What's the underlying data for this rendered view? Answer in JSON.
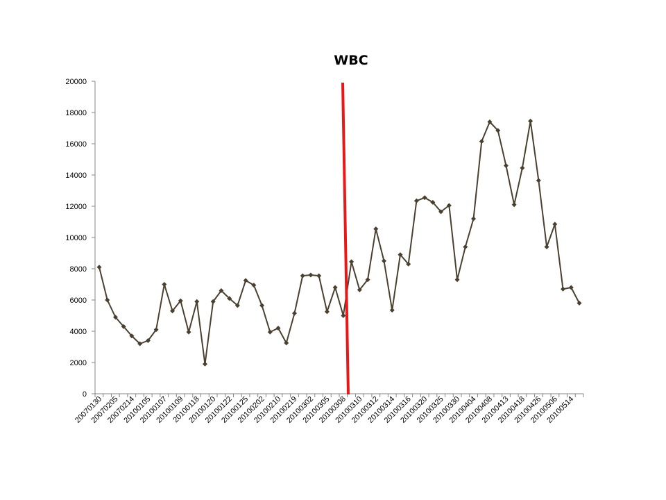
{
  "chart_data": {
    "type": "line",
    "title": "WBC",
    "xlabel": "",
    "ylabel": "",
    "ylim": [
      0,
      20000
    ],
    "yticks": [
      0,
      2000,
      4000,
      6000,
      8000,
      10000,
      12000,
      14000,
      16000,
      18000,
      20000
    ],
    "grid": false,
    "legend": "none",
    "x_tick_labels": [
      "20070130",
      "20070205",
      "20070214",
      "20100105",
      "20100107",
      "20100109",
      "20100118",
      "20100120",
      "20100122",
      "20100125",
      "20100202",
      "20100210",
      "20100219",
      "20100302",
      "20100305",
      "20100308",
      "20100310",
      "20100312",
      "20100314",
      "20100316",
      "20100320",
      "20100325",
      "20100330",
      "20100404",
      "20100408",
      "20100413",
      "20100418",
      "20100426",
      "20100506",
      "20100514"
    ],
    "series": [
      {
        "values": [
          8100,
          6000,
          4900,
          4300,
          3700,
          3200,
          3400,
          4100,
          7000,
          5300,
          5950,
          3950,
          5900,
          1900,
          5900,
          6600,
          6100,
          5650,
          7250,
          6950,
          5650,
          3950,
          4200,
          3250,
          5150,
          7550,
          7600,
          7550,
          5250,
          6800,
          5000,
          8450,
          6650,
          7300,
          10550,
          8500,
          5350,
          8900,
          8300,
          12350,
          12550,
          12250,
          11650,
          12050,
          7300,
          9400,
          11200,
          16150,
          17400,
          16850,
          14600,
          12100,
          14450,
          17450,
          13650,
          9400,
          10850,
          6700,
          6800,
          5800
        ],
        "color": "#4a4030"
      }
    ],
    "annotation_line_color": "#e81818"
  }
}
